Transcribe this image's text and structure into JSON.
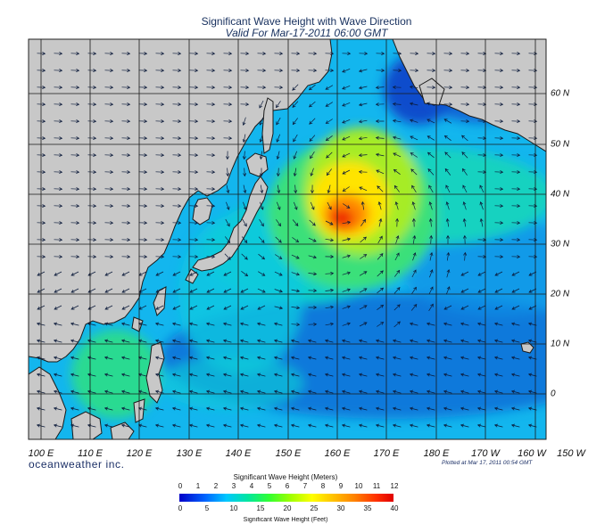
{
  "title": "Significant Wave Height with Wave Direction",
  "subtitle": "Valid For Mar-17-2011 06:00 GMT",
  "lon_labels": [
    "100 E",
    "110 E",
    "120 E",
    "130 E",
    "140 E",
    "150 E",
    "160 E",
    "170 E",
    "180 E",
    "170 W",
    "160 W",
    "150 W"
  ],
  "lat_labels": [
    "60 N",
    "50 N",
    "40 N",
    "30 N",
    "20 N",
    "10 N",
    "0"
  ],
  "credit": "oceanweather inc.",
  "plotted_at": "Plotted at Mar 17, 2011 00:54 GMT",
  "legend": {
    "title": "Significant Wave Height (Meters)",
    "meter_ticks": [
      "0",
      "1",
      "2",
      "3",
      "4",
      "5",
      "6",
      "7",
      "8",
      "9",
      "10",
      "11",
      "12"
    ],
    "feet_ticks": [
      "0",
      "5",
      "10",
      "15",
      "20",
      "25",
      "30",
      "35",
      "40"
    ],
    "subtitle": "Significant Wave Height (Feet)",
    "colors": [
      "#0000c8",
      "#0064ff",
      "#00c8ff",
      "#00e6a0",
      "#32ff32",
      "#a0ff00",
      "#ffff00",
      "#ffc000",
      "#ff8000",
      "#ff3000",
      "#e00000"
    ]
  },
  "colors": {
    "land": "#c8c8c8",
    "coast": "#1a1a1a",
    "grid": "#222222",
    "title": "#17305e",
    "credit": "#1b2f66"
  },
  "map": {
    "lon_range": [
      "95 E",
      "150 W"
    ],
    "lat_range": [
      "0",
      "65 N"
    ],
    "grid_step_degrees": 10,
    "max_wave_height_region": "approx 42 N, 161 E"
  }
}
